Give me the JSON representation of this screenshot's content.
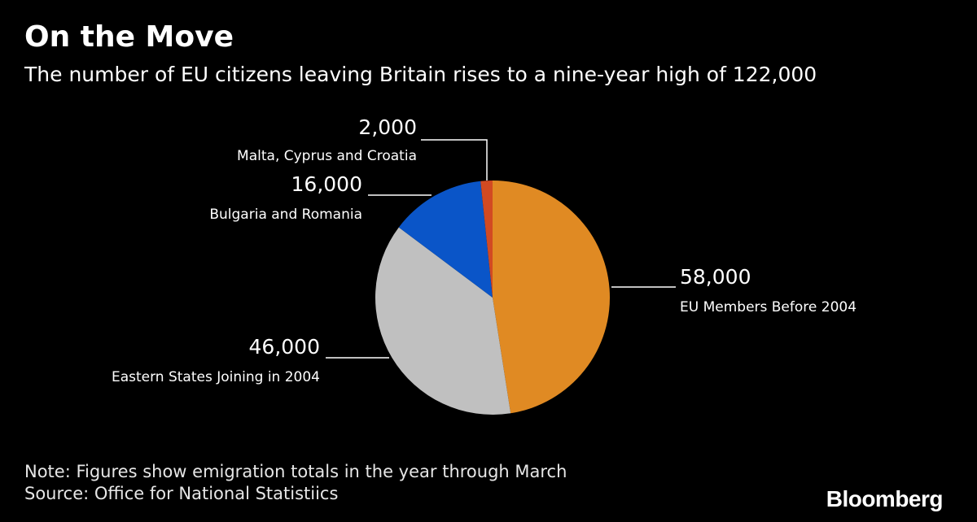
{
  "header": {
    "title": "On the Move",
    "subtitle": "The number of EU citizens leaving Britain rises to a nine-year high of 122,000"
  },
  "footer": {
    "note": "Note: Figures show emigration totals in the year through March",
    "source": "Source: Office for National Statistiics"
  },
  "brand": {
    "logo": "Bloomberg"
  },
  "chart_data": {
    "type": "pie",
    "title": "",
    "legend": "none",
    "slices": [
      {
        "label": "EU Members Before 2004",
        "value": 58000,
        "value_label": "58,000",
        "color": "#e08a23"
      },
      {
        "label": "Eastern States Joining in 2004",
        "value": 46000,
        "value_label": "46,000",
        "color": "#c0c0c0"
      },
      {
        "label": "Bulgaria and Romania",
        "value": 16000,
        "value_label": "16,000",
        "color": "#0a55c8"
      },
      {
        "label": "Malta, Cyprus and Croatia",
        "value": 2000,
        "value_label": "2,000",
        "color": "#d24a22"
      }
    ]
  }
}
